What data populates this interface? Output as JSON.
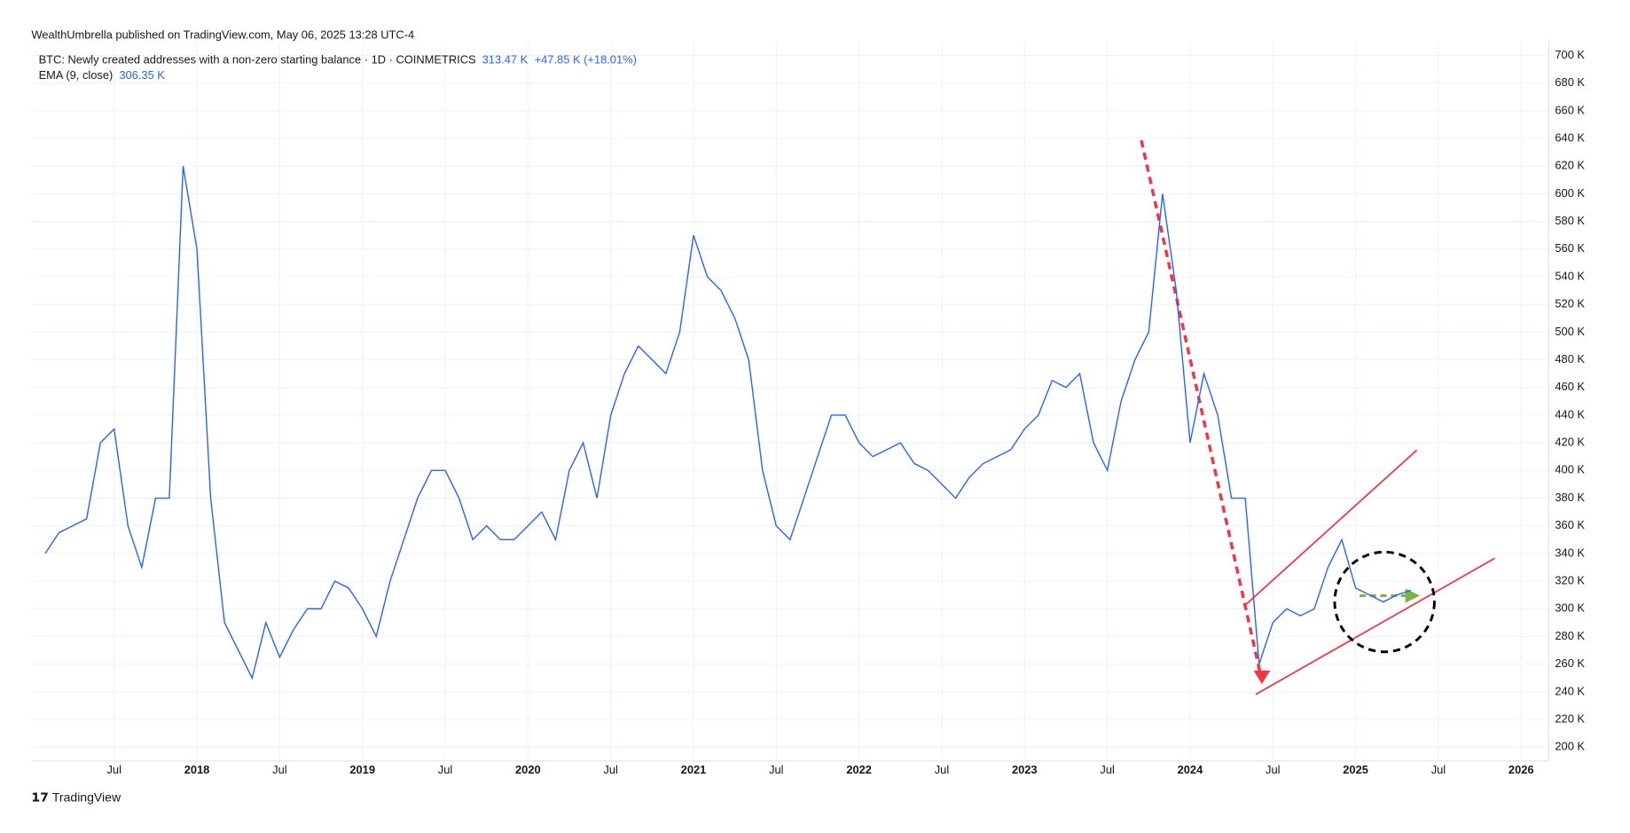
{
  "header": {
    "published": "WealthUmbrella published on TradingView.com, May 06, 2025 13:28 UTC-4",
    "last_value": "313.47 K",
    "change": "+47.85 K (+18.01%)",
    "indicator": "EMA (9, close)",
    "indicator_value": "306.35 K"
  },
  "footer": {
    "brand": "TradingView"
  },
  "chart_data": {
    "type": "line",
    "x": [
      "2017-02",
      "2017-03",
      "2017-04",
      "2017-05",
      "2017-06",
      "2017-07",
      "2017-08",
      "2017-09",
      "2017-10",
      "2017-11",
      "2017-12",
      "2018-01",
      "2018-02",
      "2018-03",
      "2018-04",
      "2018-05",
      "2018-06",
      "2018-07",
      "2018-08",
      "2018-09",
      "2018-10",
      "2018-11",
      "2018-12",
      "2019-01",
      "2019-02",
      "2019-03",
      "2019-04",
      "2019-05",
      "2019-06",
      "2019-07",
      "2019-08",
      "2019-09",
      "2019-10",
      "2019-11",
      "2019-12",
      "2020-01",
      "2020-02",
      "2020-03",
      "2020-04",
      "2020-05",
      "2020-06",
      "2020-07",
      "2020-08",
      "2020-09",
      "2020-10",
      "2020-11",
      "2020-12",
      "2021-01",
      "2021-02",
      "2021-03",
      "2021-04",
      "2021-05",
      "2021-06",
      "2021-07",
      "2021-08",
      "2021-09",
      "2021-10",
      "2021-11",
      "2021-12",
      "2022-01",
      "2022-02",
      "2022-03",
      "2022-04",
      "2022-05",
      "2022-06",
      "2022-07",
      "2022-08",
      "2022-09",
      "2022-10",
      "2022-11",
      "2022-12",
      "2023-01",
      "2023-02",
      "2023-03",
      "2023-04",
      "2023-05",
      "2023-06",
      "2023-07",
      "2023-08",
      "2023-09",
      "2023-10",
      "2023-11",
      "2023-12",
      "2024-01",
      "2024-02",
      "2024-03",
      "2024-04",
      "2024-05",
      "2024-06",
      "2024-07",
      "2024-08",
      "2024-09",
      "2024-10",
      "2024-11",
      "2024-12",
      "2025-01",
      "2025-02",
      "2025-03",
      "2025-04",
      "2025-05"
    ],
    "series": [
      {
        "name": "BTC: Newly created addresses with a non-zero starting balance · 1D · COINMETRICS",
        "color": "#2962ff",
        "values": [
          340000,
          355000,
          360000,
          365000,
          420000,
          430000,
          360000,
          330000,
          380000,
          380000,
          620000,
          560000,
          380000,
          290000,
          270000,
          250000,
          290000,
          265000,
          285000,
          300000,
          300000,
          320000,
          315000,
          300000,
          280000,
          320000,
          350000,
          380000,
          400000,
          400000,
          380000,
          350000,
          360000,
          350000,
          350000,
          360000,
          370000,
          350000,
          400000,
          420000,
          380000,
          440000,
          470000,
          490000,
          480000,
          470000,
          500000,
          570000,
          540000,
          530000,
          510000,
          480000,
          400000,
          360000,
          350000,
          380000,
          410000,
          440000,
          440000,
          420000,
          410000,
          415000,
          420000,
          405000,
          400000,
          390000,
          380000,
          395000,
          405000,
          410000,
          415000,
          430000,
          440000,
          465000,
          460000,
          470000,
          420000,
          400000,
          450000,
          480000,
          500000,
          600000,
          530000,
          420000,
          470000,
          440000,
          380000,
          380000,
          260000,
          290000,
          300000,
          295000,
          300000,
          330000,
          350000,
          315000,
          310000,
          305000,
          310000,
          313470
        ]
      }
    ],
    "xlim": [
      "2017-01",
      "2026-03"
    ],
    "xticks": [
      {
        "value": "2017-07",
        "label": "Jul"
      },
      {
        "value": "2018-01",
        "label": "2018"
      },
      {
        "value": "2018-07",
        "label": "Jul"
      },
      {
        "value": "2019-01",
        "label": "2019"
      },
      {
        "value": "2019-07",
        "label": "Jul"
      },
      {
        "value": "2020-01",
        "label": "2020"
      },
      {
        "value": "2020-07",
        "label": "Jul"
      },
      {
        "value": "2021-01",
        "label": "2021"
      },
      {
        "value": "2021-07",
        "label": "Jul"
      },
      {
        "value": "2022-01",
        "label": "2022"
      },
      {
        "value": "2022-07",
        "label": "Jul"
      },
      {
        "value": "2023-01",
        "label": "2023"
      },
      {
        "value": "2023-07",
        "label": "Jul"
      },
      {
        "value": "2024-01",
        "label": "2024"
      },
      {
        "value": "2024-07",
        "label": "Jul"
      },
      {
        "value": "2025-01",
        "label": "2025"
      },
      {
        "value": "2025-07",
        "label": "Jul"
      },
      {
        "value": "2026-01",
        "label": "2026"
      }
    ],
    "ylim": [
      190000,
      710000
    ],
    "yticks": [
      {
        "value": 200000,
        "label": "200 K"
      },
      {
        "value": 220000,
        "label": "220 K"
      },
      {
        "value": 240000,
        "label": "240 K"
      },
      {
        "value": 260000,
        "label": "260 K"
      },
      {
        "value": 280000,
        "label": "280 K"
      },
      {
        "value": 300000,
        "label": "300 K"
      },
      {
        "value": 320000,
        "label": "320 K"
      },
      {
        "value": 340000,
        "label": "340 K"
      },
      {
        "value": 360000,
        "label": "360 K"
      },
      {
        "value": 380000,
        "label": "380 K"
      },
      {
        "value": 400000,
        "label": "400 K"
      },
      {
        "value": 420000,
        "label": "420 K"
      },
      {
        "value": 440000,
        "label": "440 K"
      },
      {
        "value": 460000,
        "label": "460 K"
      },
      {
        "value": 480000,
        "label": "480 K"
      },
      {
        "value": 500000,
        "label": "500 K"
      },
      {
        "value": 520000,
        "label": "520 K"
      },
      {
        "value": 540000,
        "label": "540 K"
      },
      {
        "value": 560000,
        "label": "560 K"
      },
      {
        "value": 580000,
        "label": "580 K"
      },
      {
        "value": 600000,
        "label": "600 K"
      },
      {
        "value": 620000,
        "label": "620 K"
      },
      {
        "value": 640000,
        "label": "640 K"
      },
      {
        "value": 660000,
        "label": "660 K"
      },
      {
        "value": 680000,
        "label": "680 K"
      },
      {
        "value": 700000,
        "label": "700 K"
      }
    ],
    "grid": true
  }
}
